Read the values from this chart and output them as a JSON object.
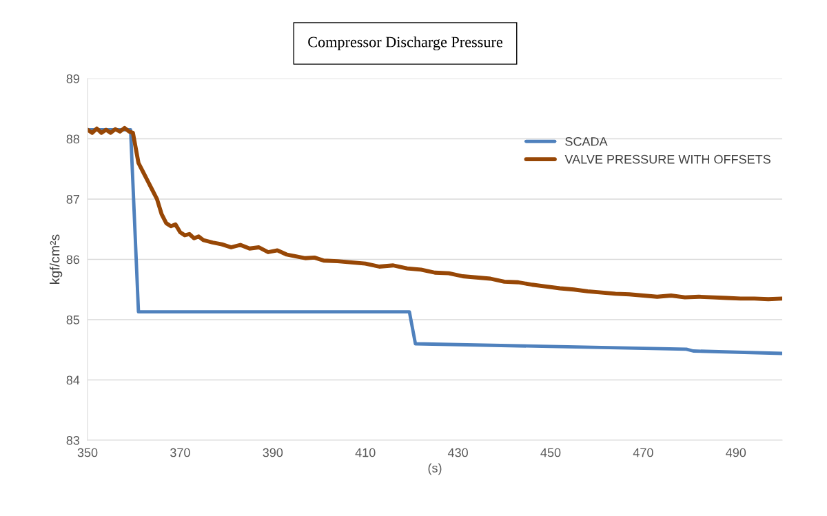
{
  "chart_data": {
    "type": "line",
    "title": "Compressor Discharge Pressure",
    "xlabel": "(s)",
    "ylabel": "kgf/cm²s",
    "xlim": [
      350,
      500
    ],
    "xticks": [
      350,
      370,
      390,
      410,
      430,
      450,
      470,
      490
    ],
    "ylim": [
      83,
      89
    ],
    "yticks": [
      83,
      84,
      85,
      86,
      87,
      88,
      89
    ],
    "grid": "y",
    "legend": "top right",
    "marker": "none",
    "line_style": "solid",
    "series": [
      {
        "name": "SCADA",
        "color": "#4f81bd",
        "x": [
          350,
          359.3,
          361.0,
          419.5,
          420.8,
          479.3,
          480.8,
          500
        ],
        "values": [
          88.15,
          88.15,
          85.13,
          85.13,
          84.6,
          84.51,
          84.48,
          84.44
        ]
      },
      {
        "name": "VALVE PRESSURE WITH OFFSETS",
        "color": "#974706",
        "x": [
          350,
          351,
          352,
          353,
          354,
          355,
          356,
          357,
          358,
          359,
          359.8,
          361,
          362,
          363,
          364,
          365,
          366,
          367,
          368,
          369,
          370,
          371,
          372,
          373,
          374,
          375,
          377,
          379,
          381,
          383,
          385,
          387,
          389,
          391,
          393,
          395,
          397,
          399,
          401,
          404,
          407,
          410,
          413,
          416,
          419,
          422,
          425,
          428,
          431,
          434,
          437,
          440,
          443,
          446,
          449,
          452,
          455,
          458,
          461,
          464,
          467,
          470,
          473,
          476,
          479,
          482,
          485,
          488,
          491,
          494,
          497,
          500
        ],
        "values": [
          88.15,
          88.1,
          88.17,
          88.1,
          88.15,
          88.1,
          88.16,
          88.12,
          88.18,
          88.12,
          88.1,
          87.6,
          87.45,
          87.3,
          87.15,
          87.0,
          86.75,
          86.6,
          86.55,
          86.58,
          86.45,
          86.4,
          86.42,
          86.35,
          86.38,
          86.32,
          86.28,
          86.25,
          86.2,
          86.24,
          86.18,
          86.2,
          86.12,
          86.15,
          86.08,
          86.05,
          86.02,
          86.03,
          85.98,
          85.97,
          85.95,
          85.93,
          85.88,
          85.9,
          85.85,
          85.83,
          85.78,
          85.77,
          85.72,
          85.7,
          85.68,
          85.63,
          85.62,
          85.58,
          85.55,
          85.52,
          85.5,
          85.47,
          85.45,
          85.43,
          85.42,
          85.4,
          85.38,
          85.4,
          85.37,
          85.38,
          85.37,
          85.36,
          85.35,
          85.35,
          85.34,
          85.35
        ]
      }
    ]
  }
}
